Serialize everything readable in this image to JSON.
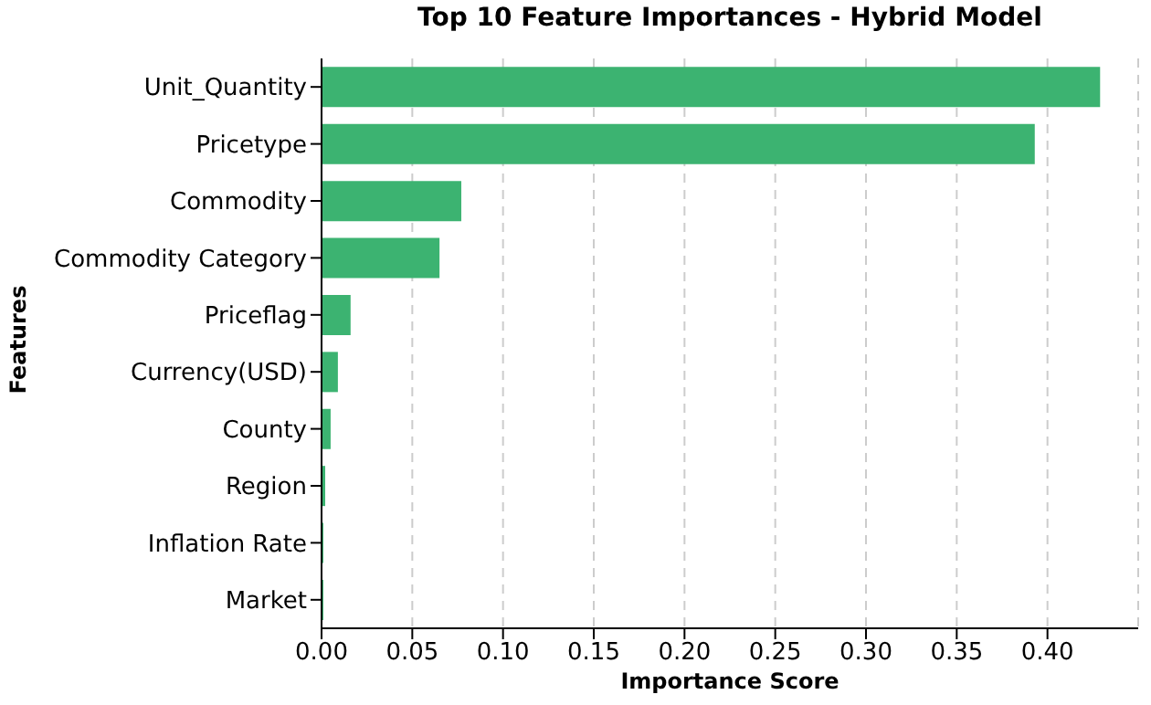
{
  "chart_data": {
    "type": "bar",
    "orientation": "horizontal",
    "title": "Top 10 Feature Importances - Hybrid Model",
    "xlabel": "Importance Score",
    "ylabel": "Features",
    "categories": [
      "Unit_Quantity",
      "Pricetype",
      "Commodity",
      "Commodity Category",
      "Priceflag",
      "Currency(USD)",
      "County",
      "Region",
      "Inflation Rate",
      "Market"
    ],
    "values": [
      0.429,
      0.393,
      0.077,
      0.065,
      0.016,
      0.009,
      0.005,
      0.002,
      0.001,
      0.001
    ],
    "color": "#3cb371",
    "xlim": [
      0,
      0.45
    ],
    "xticks": [
      {
        "value": 0,
        "label": "0.00"
      },
      {
        "value": 0.05,
        "label": "0.05"
      },
      {
        "value": 0.1,
        "label": "0.10"
      },
      {
        "value": 0.15,
        "label": "0.15"
      },
      {
        "value": 0.2,
        "label": "0.20"
      },
      {
        "value": 0.25,
        "label": "0.25"
      },
      {
        "value": 0.3,
        "label": "0.30"
      },
      {
        "value": 0.35,
        "label": "0.35"
      },
      {
        "value": 0.4,
        "label": "0.40"
      }
    ],
    "grid": "x",
    "legend": false
  }
}
